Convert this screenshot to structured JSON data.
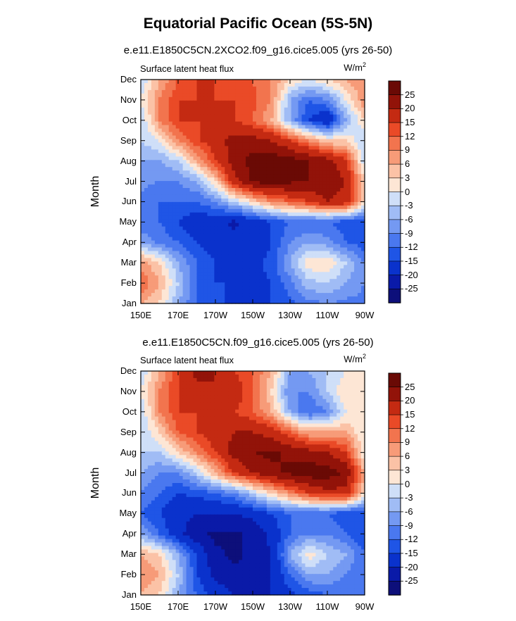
{
  "figure": {
    "title": "Equatorial Pacific Ocean (5S-5N)"
  },
  "colors": {
    "levels": [
      "#0d0f7a",
      "#0a1aa8",
      "#0a32cc",
      "#1f55e6",
      "#4a78ef",
      "#7499f2",
      "#a0bcf5",
      "#cfdff8",
      "#fde6d5",
      "#fbc2a6",
      "#f79b78",
      "#f2744e",
      "#ea4a27",
      "#c42a12",
      "#921309",
      "#6a0a05"
    ]
  },
  "chart_data": [
    {
      "type": "heatmap",
      "subtitle": "e.e11.E1850C5CN.2XCO2.f09_g16.cice5.005 (yrs 26-50)",
      "left_label": "Surface latent heat flux",
      "units": "W/m",
      "units_sup": "2",
      "xlabel": "",
      "ylabel": "Month",
      "x_ticks": [
        "150E",
        "170E",
        "170W",
        "150W",
        "130W",
        "110W",
        "90W"
      ],
      "y_ticks": [
        "Jan",
        "Feb",
        "Mar",
        "Apr",
        "May",
        "Jun",
        "Jul",
        "Aug",
        "Sep",
        "Oct",
        "Nov",
        "Dec"
      ],
      "colorbar_labels": [
        "25",
        "20",
        "15",
        "12",
        "9",
        "6",
        "3",
        "0",
        "-3",
        "-6",
        "-9",
        "-12",
        "-15",
        "-20",
        "-25"
      ],
      "x": [
        150,
        160,
        170,
        180,
        190,
        200,
        210,
        220,
        230,
        240,
        250,
        260,
        270
      ],
      "y": [
        "Jan",
        "Feb",
        "Mar",
        "Apr",
        "May",
        "Jun",
        "Jul",
        "Aug",
        "Sep",
        "Oct",
        "Nov",
        "Dec"
      ],
      "values": [
        [
          6,
          3,
          -6,
          -12,
          -14,
          -16,
          -16,
          -15,
          -13,
          -10,
          -9,
          -10,
          -10
        ],
        [
          12,
          6,
          -3,
          -12,
          -15,
          -15,
          -16,
          -15,
          -10,
          -4,
          -3,
          -6,
          -9
        ],
        [
          8,
          3,
          -6,
          -12,
          -15,
          -16,
          -16,
          -14,
          -6,
          2,
          3,
          -3,
          -9
        ],
        [
          -6,
          -10,
          -12,
          -15,
          -18,
          -18,
          -18,
          -15,
          -9,
          -6,
          -8,
          -12,
          -14
        ],
        [
          -12,
          -12,
          -15,
          -18,
          -18,
          -21,
          -18,
          -15,
          -12,
          -12,
          -12,
          -14,
          -15
        ],
        [
          -10,
          -12,
          -12,
          -12,
          -9,
          -3,
          3,
          9,
          12,
          15,
          20,
          18,
          3
        ],
        [
          -8,
          -9,
          -9,
          -6,
          3,
          18,
          26,
          27,
          26,
          25,
          24,
          20,
          3
        ],
        [
          -6,
          -6,
          -3,
          6,
          15,
          22,
          27,
          28,
          27,
          25,
          22,
          16,
          -3
        ],
        [
          -3,
          0,
          9,
          14,
          18,
          22,
          22,
          20,
          15,
          9,
          3,
          3,
          -3
        ],
        [
          -3,
          9,
          15,
          15,
          15,
          15,
          12,
          6,
          -6,
          -15,
          -20,
          -6,
          3
        ],
        [
          0,
          9,
          15,
          15,
          15,
          15,
          13,
          9,
          -6,
          -12,
          -9,
          0,
          9
        ],
        [
          -3,
          6,
          12,
          15,
          15,
          14,
          12,
          9,
          3,
          0,
          3,
          6,
          9
        ]
      ]
    },
    {
      "type": "heatmap",
      "subtitle": "e.e11.E1850C5CN.f09_g16.cice5.005 (yrs 26-50)",
      "left_label": "Surface latent heat flux",
      "units": "W/m",
      "units_sup": "2",
      "xlabel": "",
      "ylabel": "Month",
      "x_ticks": [
        "150E",
        "170E",
        "170W",
        "150W",
        "130W",
        "110W",
        "90W"
      ],
      "y_ticks": [
        "Jan",
        "Feb",
        "Mar",
        "Apr",
        "May",
        "Jun",
        "Jul",
        "Aug",
        "Sep",
        "Oct",
        "Nov",
        "Dec"
      ],
      "colorbar_labels": [
        "25",
        "20",
        "15",
        "12",
        "9",
        "6",
        "3",
        "0",
        "-3",
        "-6",
        "-9",
        "-12",
        "-15",
        "-20",
        "-25"
      ],
      "x": [
        150,
        160,
        170,
        180,
        190,
        200,
        210,
        220,
        230,
        240,
        250,
        260,
        270
      ],
      "y": [
        "Jan",
        "Feb",
        "Mar",
        "Apr",
        "May",
        "Jun",
        "Jul",
        "Aug",
        "Sep",
        "Oct",
        "Nov",
        "Dec"
      ],
      "values": [
        [
          6,
          3,
          -6,
          -12,
          -16,
          -20,
          -20,
          -20,
          -16,
          -14,
          -12,
          -12,
          -12
        ],
        [
          9,
          6,
          -3,
          -15,
          -22,
          -24,
          -24,
          -20,
          -12,
          -6,
          -6,
          -9,
          -12
        ],
        [
          6,
          3,
          -6,
          -15,
          -24,
          -26,
          -24,
          -20,
          -6,
          2,
          -3,
          -6,
          -12
        ],
        [
          -6,
          -12,
          -18,
          -24,
          -26,
          -26,
          -24,
          -18,
          -12,
          -9,
          -9,
          -12,
          -15
        ],
        [
          -12,
          -15,
          -18,
          -20,
          -20,
          -20,
          -18,
          -15,
          -12,
          -12,
          -12,
          -15,
          -15
        ],
        [
          -9,
          -12,
          -15,
          -14,
          -12,
          -9,
          -3,
          3,
          9,
          15,
          18,
          18,
          3
        ],
        [
          -6,
          -9,
          -9,
          -3,
          6,
          15,
          20,
          24,
          26,
          28,
          28,
          24,
          6
        ],
        [
          -3,
          -3,
          3,
          9,
          15,
          22,
          25,
          26,
          24,
          22,
          20,
          15,
          0
        ],
        [
          -3,
          3,
          12,
          15,
          18,
          20,
          20,
          18,
          12,
          6,
          6,
          6,
          0
        ],
        [
          -3,
          9,
          15,
          15,
          15,
          15,
          12,
          6,
          -6,
          -12,
          -9,
          0,
          3
        ],
        [
          0,
          9,
          15,
          18,
          20,
          18,
          12,
          3,
          -9,
          -9,
          -3,
          3,
          3
        ],
        [
          -3,
          6,
          15,
          22,
          20,
          15,
          12,
          6,
          -6,
          -6,
          -3,
          0,
          3
        ]
      ]
    }
  ]
}
